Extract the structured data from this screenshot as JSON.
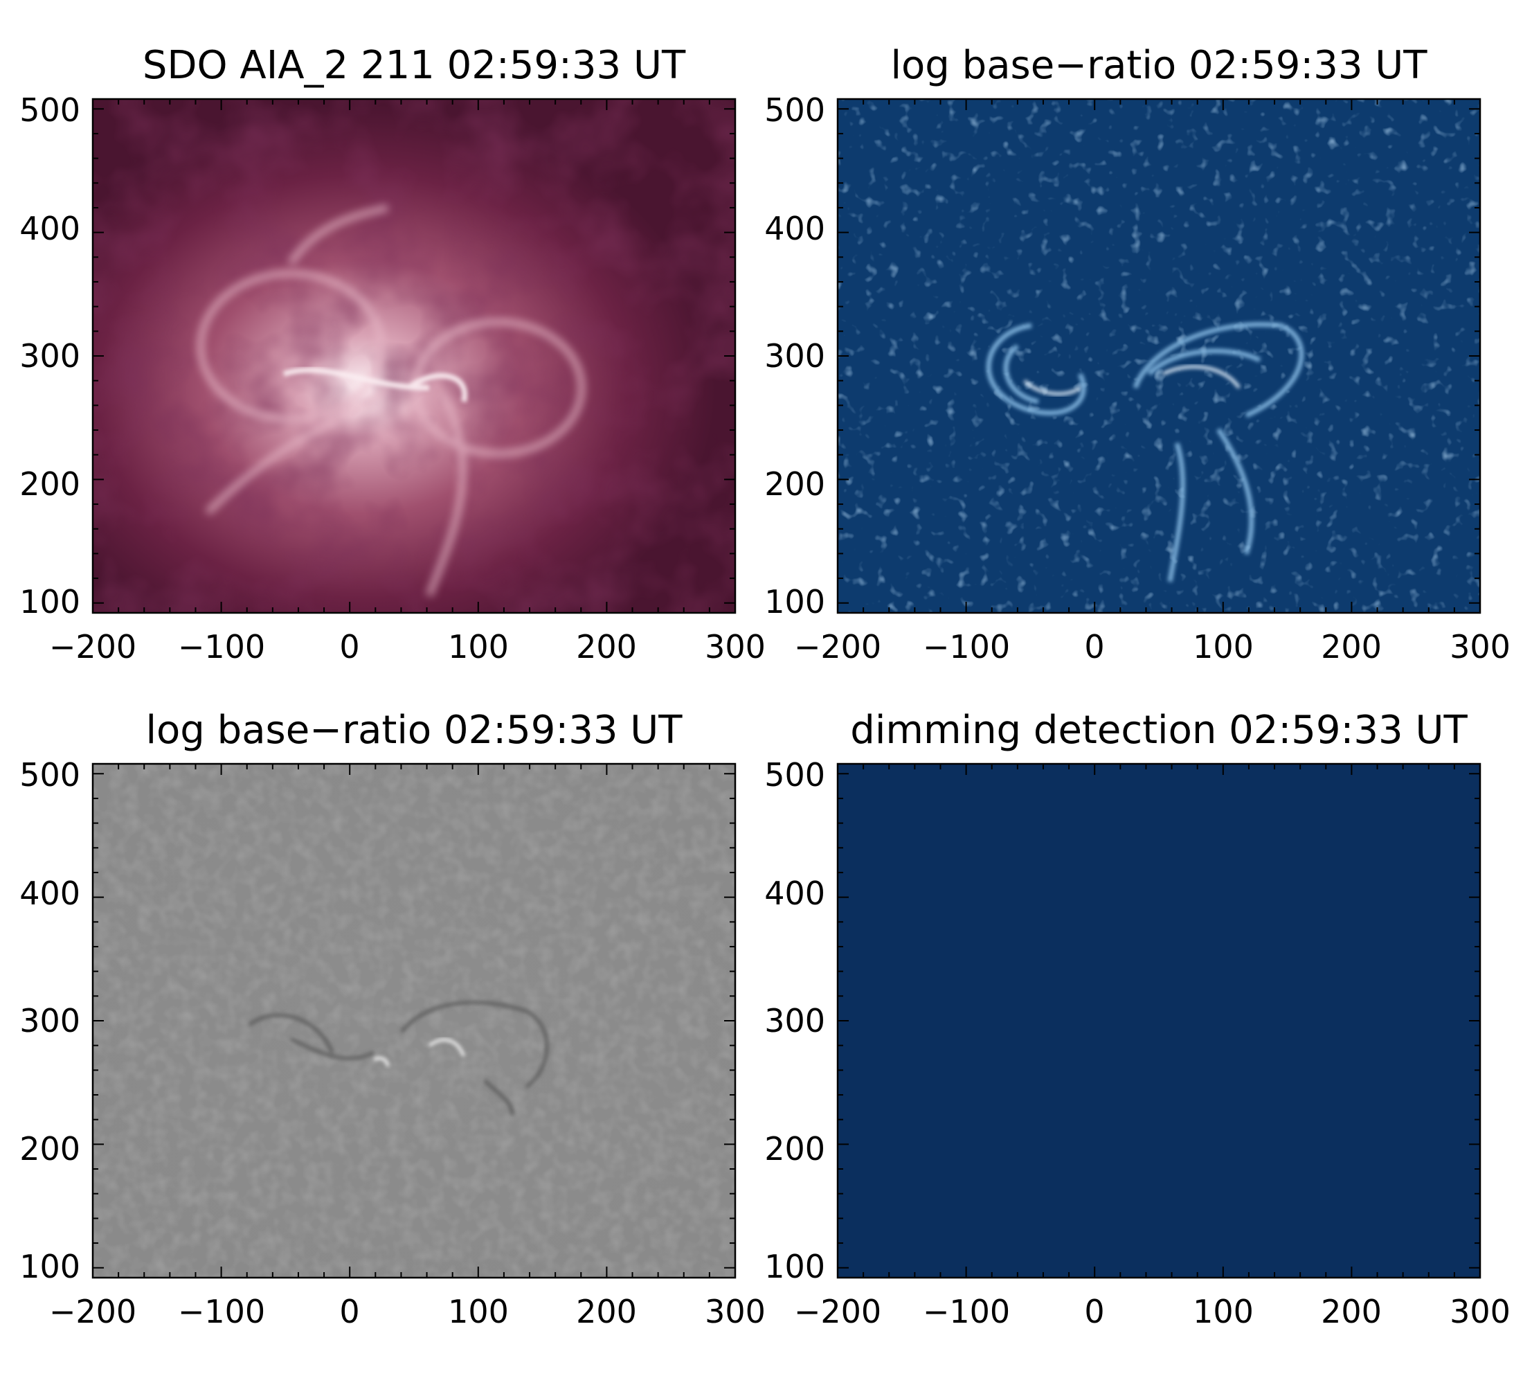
{
  "panels": [
    {
      "title": "SDO AIA_2 211 02:59:33 UT",
      "image": "euv-image-211",
      "colormap": [
        "#3a0d22",
        "#6b2244",
        "#a0506e",
        "#d9a3b5",
        "#fbeef2"
      ],
      "xticks": [
        "−200",
        "−100",
        "0",
        "100",
        "200",
        "300"
      ],
      "yticks": [
        "500",
        "400",
        "300",
        "200",
        "100"
      ]
    },
    {
      "title": "log base−ratio 02:59:33 UT",
      "image": "ratio-map-blue",
      "colormap": [
        "#062a54",
        "#0d3b6e",
        "#2d6aa3",
        "#7fb3de",
        "#e8f4ff"
      ],
      "xticks": [
        "−200",
        "−100",
        "0",
        "100",
        "200",
        "300"
      ],
      "yticks": [
        "500",
        "400",
        "300",
        "200",
        "100"
      ]
    },
    {
      "title": "log base−ratio 02:59:33 UT",
      "image": "ratio-map-gray",
      "colormap": [
        "#3d3d3d",
        "#6a6a6a",
        "#8c8c8c",
        "#b5b5b5",
        "#f2f2f2"
      ],
      "xticks": [
        "−200",
        "−100",
        "0",
        "100",
        "200",
        "300"
      ],
      "yticks": [
        "500",
        "400",
        "300",
        "200",
        "100"
      ]
    },
    {
      "title": "dimming detection 02:59:33 UT",
      "image": "dimming-mask",
      "colormap": [
        "#0b2f5e"
      ],
      "xticks": [
        "−200",
        "−100",
        "0",
        "100",
        "200",
        "300"
      ],
      "yticks": [
        "500",
        "400",
        "300",
        "200",
        "100"
      ]
    }
  ]
}
